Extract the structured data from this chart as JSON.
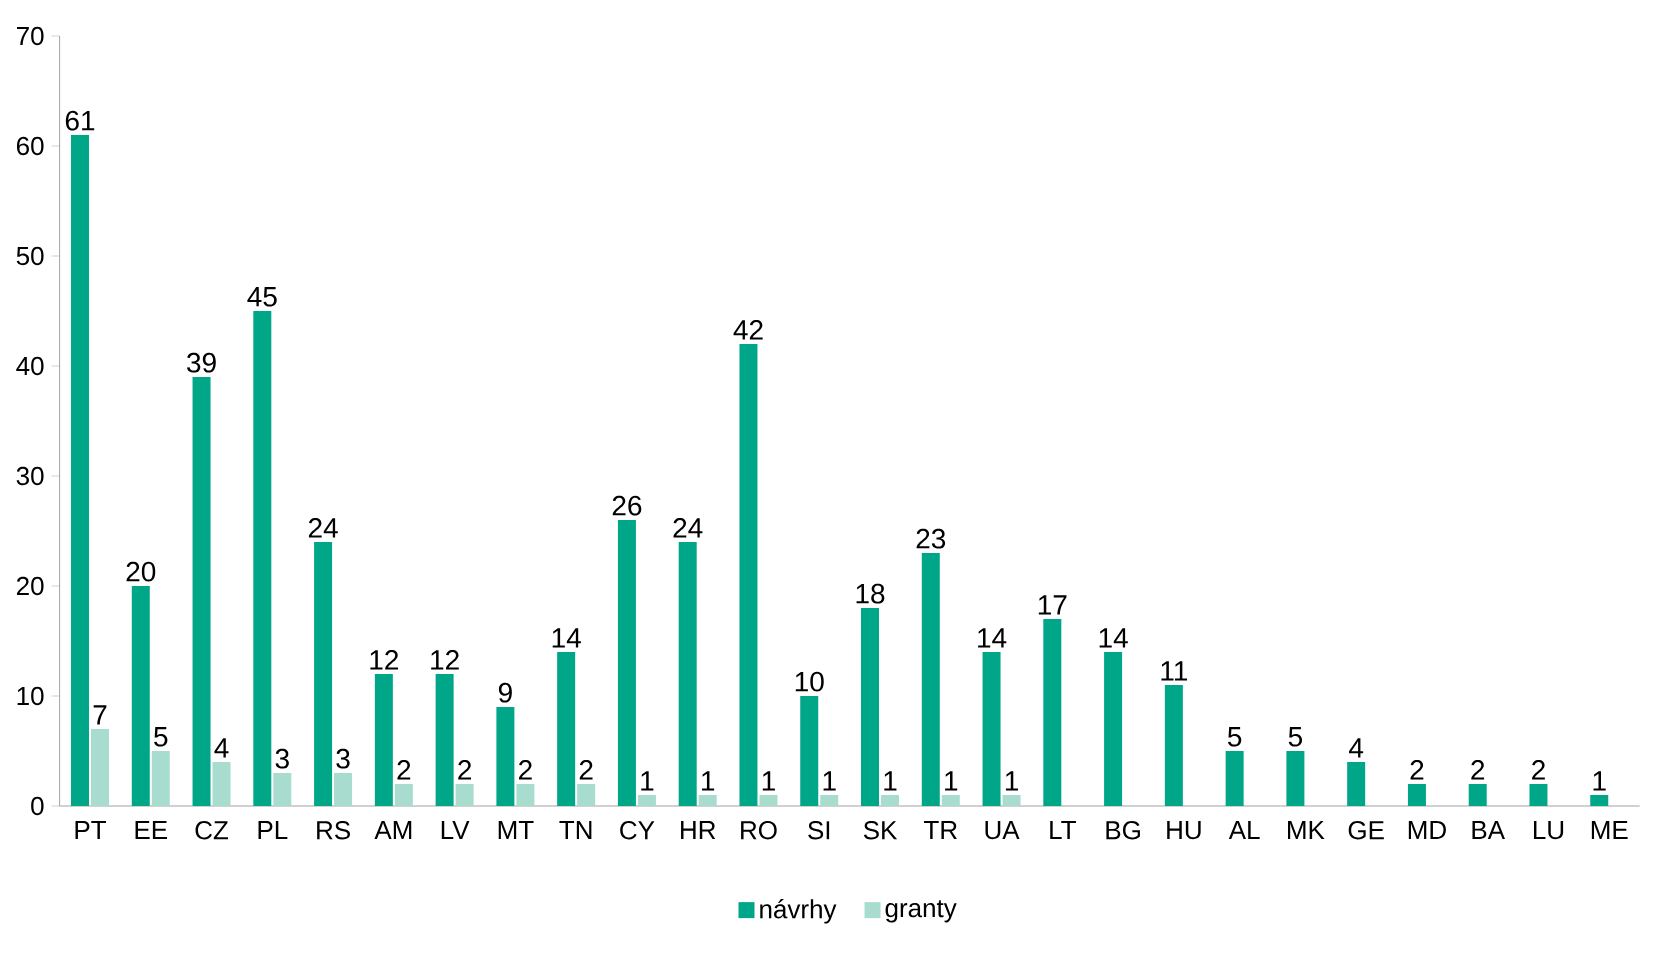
{
  "chart_data": {
    "type": "bar",
    "categories": [
      "PT",
      "EE",
      "CZ",
      "PL",
      "RS",
      "AM",
      "LV",
      "MT",
      "TN",
      "CY",
      "HR",
      "RO",
      "SI",
      "SK",
      "TR",
      "UA",
      "LT",
      "BG",
      "HU",
      "AL",
      "MK",
      "GE",
      "MD",
      "BA",
      "LU",
      "ME"
    ],
    "series": [
      {
        "name": "návrhy",
        "color": "#00a688",
        "values": [
          61,
          20,
          39,
          45,
          24,
          12,
          12,
          9,
          14,
          26,
          24,
          42,
          10,
          18,
          23,
          14,
          17,
          14,
          11,
          5,
          5,
          4,
          2,
          2,
          2,
          1
        ]
      },
      {
        "name": "granty",
        "color": "#a8dccf",
        "values": [
          7,
          5,
          4,
          3,
          3,
          2,
          2,
          2,
          2,
          1,
          1,
          1,
          1,
          1,
          1,
          1,
          null,
          null,
          null,
          null,
          null,
          null,
          null,
          null,
          null,
          null
        ]
      }
    ],
    "ylim": [
      0,
      70
    ],
    "yticks": [
      0,
      10,
      20,
      30,
      40,
      50,
      60,
      70
    ],
    "data_labels": true,
    "legend": "bottom"
  }
}
